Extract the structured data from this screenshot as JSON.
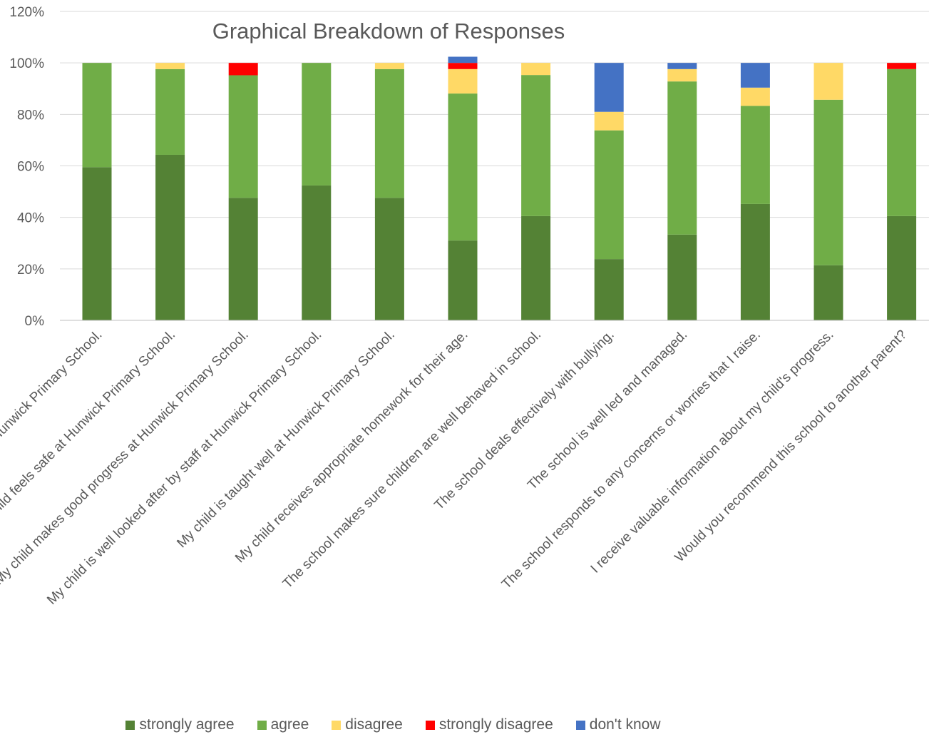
{
  "chart_data": {
    "type": "bar",
    "stacked": true,
    "title": "Graphical Breakdown of Responses",
    "xlabel": "",
    "ylabel": "",
    "ylim": [
      0,
      120
    ],
    "yticks": [
      "0%",
      "20%",
      "40%",
      "60%",
      "80%",
      "100%",
      "120%"
    ],
    "grid": true,
    "legend_position": "bottom",
    "categories": [
      "My child is happy at Hunwick Primary School.",
      "My child feels safe at Hunwick Primary School.",
      "My child makes good progress at Hunwick Primary School.",
      "My child is well looked after by staff at Hunwick Primary School.",
      "My child is taught well at Hunwick Primary School.",
      "My child receives appropriate homework for their age.",
      "The school makes sure children are well behaved in school.",
      "The school deals effectively with bullying.",
      "The school is well led and managed.",
      "The school responds to any concerns or worries that I raise.",
      "I receive valuable information about my child's progress.",
      "Would you recommend this school to another parent?"
    ],
    "series": [
      {
        "name": "strongly agree",
        "color": "#548235",
        "values": [
          59.5,
          64.3,
          47.6,
          52.4,
          47.6,
          31.0,
          40.5,
          23.8,
          33.3,
          45.2,
          21.4,
          40.5
        ]
      },
      {
        "name": "agree",
        "color": "#70AD47",
        "values": [
          40.5,
          33.3,
          47.6,
          47.6,
          50.0,
          57.1,
          54.8,
          50.0,
          59.5,
          38.1,
          64.3,
          57.1
        ]
      },
      {
        "name": "disagree",
        "color": "#FFD966",
        "values": [
          0,
          2.4,
          0,
          0,
          2.4,
          9.5,
          4.7,
          7.2,
          4.8,
          7.1,
          14.3,
          0
        ]
      },
      {
        "name": "strongly disagree",
        "color": "#FF0000",
        "values": [
          0,
          0,
          4.8,
          0,
          0,
          2.4,
          0,
          0,
          0,
          0,
          0,
          2.4
        ]
      },
      {
        "name": "don't know",
        "color": "#4472C4",
        "values": [
          0,
          0,
          0,
          0,
          0,
          2.4,
          0,
          19.0,
          2.4,
          9.6,
          0,
          0
        ]
      }
    ]
  }
}
